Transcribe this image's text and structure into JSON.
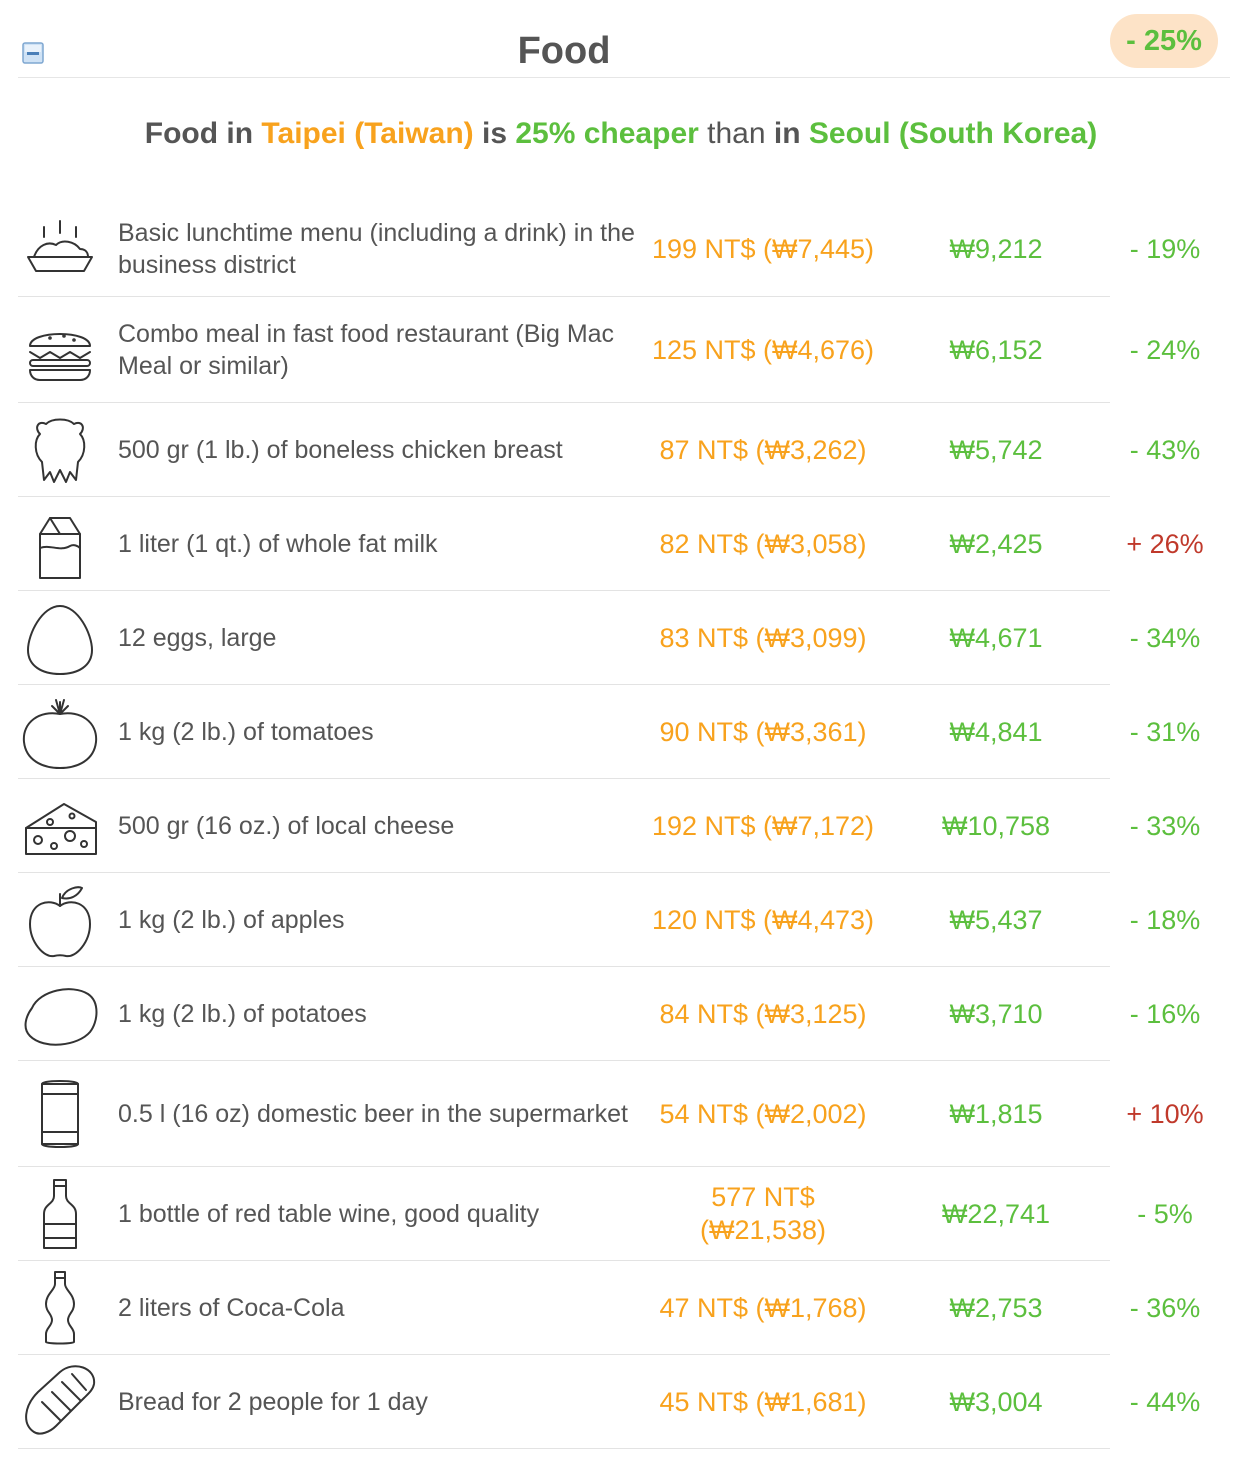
{
  "header": {
    "title": "Food",
    "overall_diff": "- 25%",
    "collapse_icon": "collapse-icon"
  },
  "summary": {
    "part1": "Food in ",
    "city1": "Taipei (Taiwan)",
    "part2": " is ",
    "comparison": "25% cheaper",
    "part3": " than",
    "part4": " in ",
    "city2": "Seoul (South Korea)"
  },
  "colors": {
    "local_price": "#f8a21d",
    "cheaper": "#5cbf3e",
    "pricier": "#c0392b",
    "badge_bg": "#fde3c7"
  },
  "items": [
    {
      "icon": "lunch-icon",
      "name": "Basic lunchtime menu (including a drink) in the business district",
      "local": "199 NT$ (₩7,445)",
      "seoul": "₩9,212",
      "diff": "- 19%",
      "sign": "neg"
    },
    {
      "icon": "burger-icon",
      "name": "Combo meal in fast food restaurant (Big Mac Meal or similar)",
      "local": "125 NT$ (₩4,676)",
      "seoul": "₩6,152",
      "diff": "- 24%",
      "sign": "neg"
    },
    {
      "icon": "chicken-icon",
      "name": "500 gr (1 lb.) of boneless chicken breast",
      "local": "87 NT$ (₩3,262)",
      "seoul": "₩5,742",
      "diff": "- 43%",
      "sign": "neg"
    },
    {
      "icon": "milk-icon",
      "name": "1 liter (1 qt.) of whole fat milk",
      "local": "82 NT$ (₩3,058)",
      "seoul": "₩2,425",
      "diff": "+ 26%",
      "sign": "pos"
    },
    {
      "icon": "egg-icon",
      "name": "12 eggs, large",
      "local": "83 NT$ (₩3,099)",
      "seoul": "₩4,671",
      "diff": "- 34%",
      "sign": "neg"
    },
    {
      "icon": "tomato-icon",
      "name": "1 kg (2 lb.) of tomatoes",
      "local": "90 NT$ (₩3,361)",
      "seoul": "₩4,841",
      "diff": "- 31%",
      "sign": "neg"
    },
    {
      "icon": "cheese-icon",
      "name": "500 gr (16 oz.) of local cheese",
      "local": "192 NT$ (₩7,172)",
      "seoul": "₩10,758",
      "diff": "- 33%",
      "sign": "neg"
    },
    {
      "icon": "apple-icon",
      "name": "1 kg (2 lb.) of apples",
      "local": "120 NT$ (₩4,473)",
      "seoul": "₩5,437",
      "diff": "- 18%",
      "sign": "neg"
    },
    {
      "icon": "potato-icon",
      "name": "1 kg (2 lb.) of potatoes",
      "local": "84 NT$ (₩3,125)",
      "seoul": "₩3,710",
      "diff": "- 16%",
      "sign": "neg"
    },
    {
      "icon": "beer-can-icon",
      "name": "0.5 l (16 oz) domestic beer in the supermarket",
      "local": "54 NT$ (₩2,002)",
      "seoul": "₩1,815",
      "diff": "+ 10%",
      "sign": "pos"
    },
    {
      "icon": "wine-bottle-icon",
      "name": "1 bottle of red table wine, good quality",
      "local": "577 NT$ (₩21,538)",
      "seoul": "₩22,741",
      "diff": "- 5%",
      "sign": "neg"
    },
    {
      "icon": "cola-bottle-icon",
      "name": "2 liters of Coca-Cola",
      "local": "47 NT$ (₩1,768)",
      "seoul": "₩2,753",
      "diff": "- 36%",
      "sign": "neg"
    },
    {
      "icon": "bread-icon",
      "name": "Bread for 2 people for 1 day",
      "local": "45 NT$ (₩1,681)",
      "seoul": "₩3,004",
      "diff": "- 44%",
      "sign": "neg"
    }
  ]
}
